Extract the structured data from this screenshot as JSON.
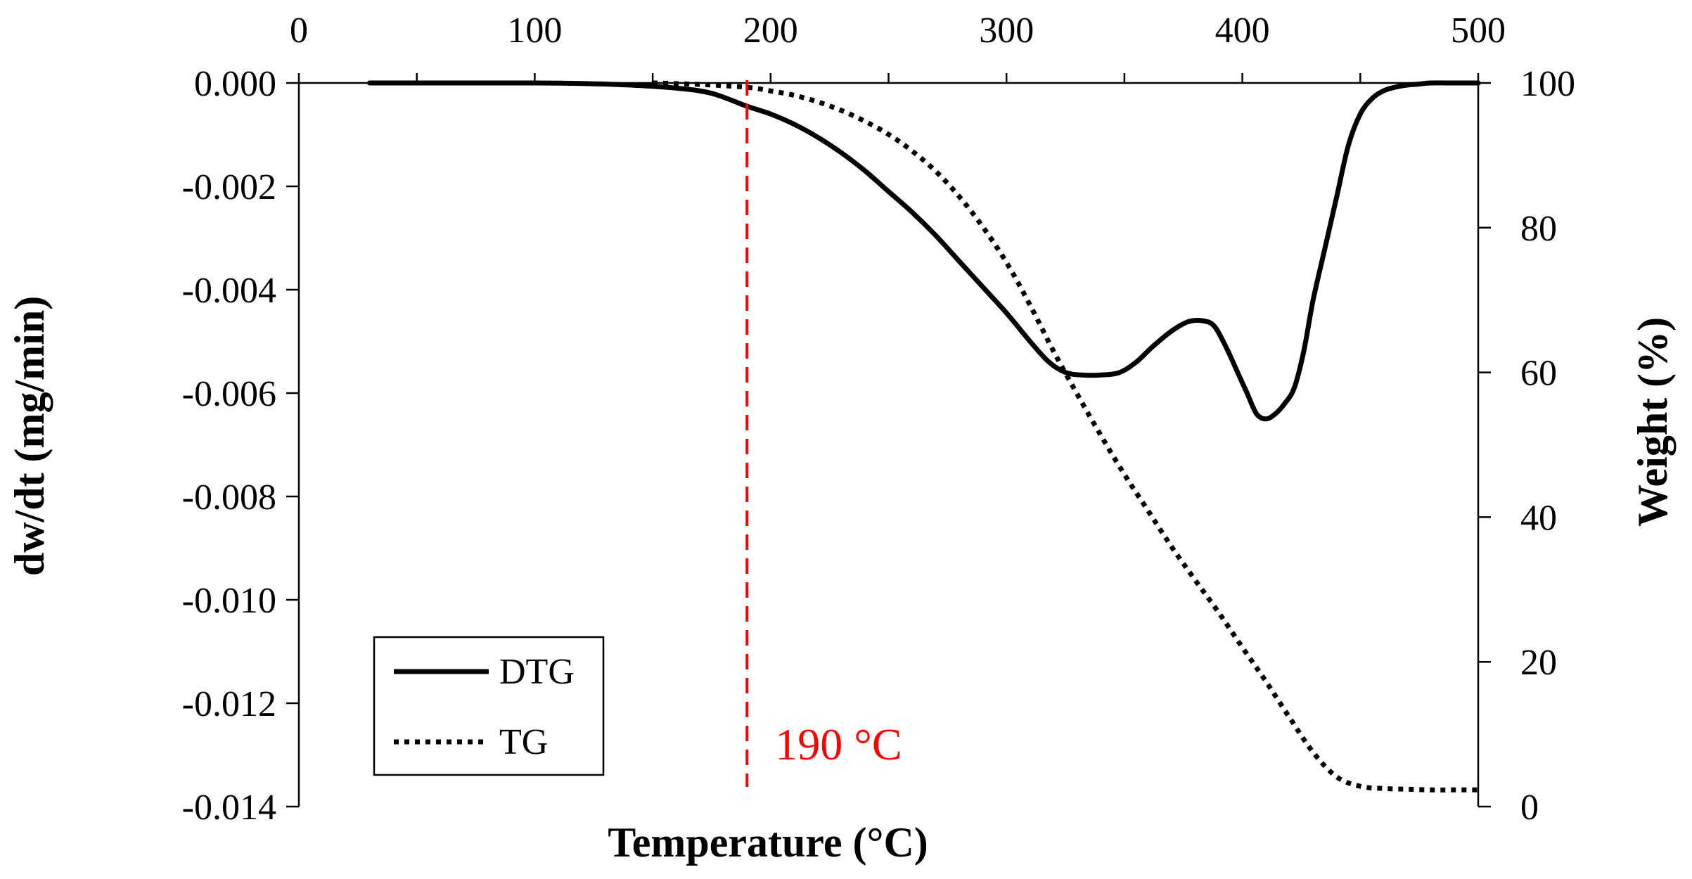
{
  "chart_data": {
    "type": "line",
    "title": "",
    "xlabel": "Temperature  (°C)",
    "ylabel_left": "dw/dt  (mg/min)",
    "ylabel_right": "Weight  (%)",
    "xlim": [
      0,
      500
    ],
    "ylim_left": [
      -0.014,
      0
    ],
    "ylim_right": [
      0,
      100
    ],
    "x_ticks": [
      {
        "value": 0,
        "label": "0"
      },
      {
        "value": 100,
        "label": "100"
      },
      {
        "value": 200,
        "label": "200"
      },
      {
        "value": 300,
        "label": "300"
      },
      {
        "value": 400,
        "label": "400"
      },
      {
        "value": 500,
        "label": "500"
      }
    ],
    "y_left_ticks": [
      {
        "value": 0,
        "label": "0.000"
      },
      {
        "value": -0.002,
        "label": "-0.002"
      },
      {
        "value": -0.004,
        "label": "-0.004"
      },
      {
        "value": -0.006,
        "label": "-0.006"
      },
      {
        "value": -0.008,
        "label": "-0.008"
      },
      {
        "value": -0.01,
        "label": "-0.010"
      },
      {
        "value": -0.012,
        "label": "-0.012"
      },
      {
        "value": -0.014,
        "label": "-0.014"
      }
    ],
    "y_right_ticks": [
      {
        "value": 100,
        "label": "100"
      },
      {
        "value": 80,
        "label": "80"
      },
      {
        "value": 60,
        "label": "60"
      },
      {
        "value": 40,
        "label": "40"
      },
      {
        "value": 20,
        "label": "20"
      },
      {
        "value": 0,
        "label": "0"
      }
    ],
    "grid": false,
    "legend_position": "bottom-left",
    "series": [
      {
        "name": "DTG",
        "axis": "left",
        "style": "solid",
        "color": "#000000",
        "x": [
          30,
          60,
          100,
          120,
          140,
          160,
          175,
          190,
          200,
          210,
          220,
          230,
          240,
          250,
          260,
          270,
          280,
          290,
          300,
          310,
          318,
          325,
          332,
          340,
          348,
          355,
          362,
          370,
          377,
          383,
          388,
          393,
          398,
          402,
          406,
          410,
          414,
          418,
          422,
          426,
          430,
          435,
          440,
          445,
          450,
          455,
          460,
          465,
          470,
          475,
          480,
          490,
          500
        ],
        "y": [
          0,
          0,
          0,
          -1e-05,
          -4e-05,
          -0.0001,
          -0.0002,
          -0.00045,
          -0.0006,
          -0.0008,
          -0.00105,
          -0.00135,
          -0.0017,
          -0.0021,
          -0.0025,
          -0.00295,
          -0.00345,
          -0.00395,
          -0.00445,
          -0.005,
          -0.0054,
          -0.0056,
          -0.00565,
          -0.00565,
          -0.0056,
          -0.0054,
          -0.0051,
          -0.0048,
          -0.00462,
          -0.0046,
          -0.0047,
          -0.0051,
          -0.0056,
          -0.006,
          -0.0064,
          -0.0065,
          -0.0064,
          -0.0062,
          -0.0059,
          -0.0052,
          -0.0042,
          -0.0032,
          -0.0022,
          -0.0012,
          -0.0006,
          -0.0003,
          -0.00015,
          -8e-05,
          -4e-05,
          -2e-05,
          0,
          0,
          0
        ]
      },
      {
        "name": "TG",
        "axis": "right",
        "style": "dotted",
        "color": "#000000",
        "x": [
          150,
          170,
          190,
          200,
          210,
          220,
          230,
          240,
          250,
          260,
          270,
          280,
          290,
          300,
          310,
          320,
          330,
          340,
          350,
          360,
          370,
          380,
          390,
          400,
          410,
          420,
          430,
          440,
          450,
          460,
          470,
          480,
          490,
          500
        ],
        "y": [
          100,
          99.8,
          99.4,
          98.9,
          98.3,
          97.4,
          96.2,
          94.7,
          92.9,
          90.6,
          87.8,
          84.3,
          80.1,
          75.2,
          69.3,
          62.9,
          57.0,
          51.3,
          45.9,
          40.9,
          35.9,
          31.3,
          26.8,
          22.0,
          17.3,
          12.3,
          7.5,
          4.1,
          2.8,
          2.5,
          2.4,
          2.3,
          2.3,
          2.3
        ]
      }
    ],
    "annotations": [
      {
        "type": "vline",
        "x": 190,
        "color": "#ff0000",
        "style": "dashed",
        "label": "190 °C"
      }
    ]
  }
}
